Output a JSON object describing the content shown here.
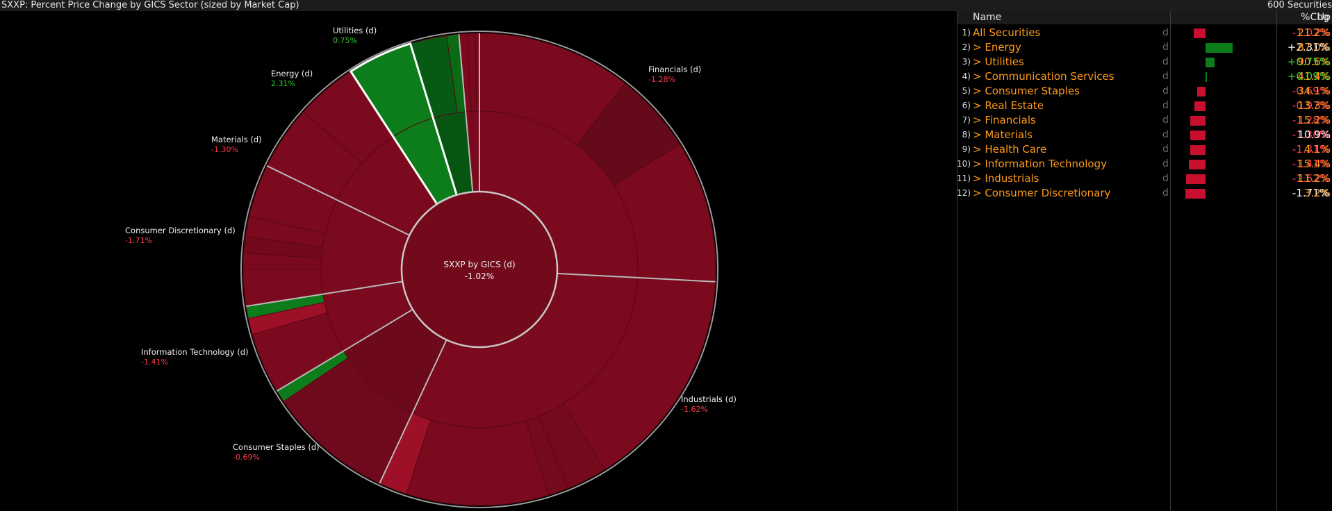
{
  "header": {
    "title": "SXXP: Percent Price Change by GICS Sector (sized by Market Cap)",
    "securities": "600 Securities"
  },
  "colors": {
    "negative": "#7b0a1f",
    "negative_strong": "#9e1028",
    "positive": "#0c7d1a",
    "positive_strong": "#139a24",
    "neg_text": "#ff3b48",
    "pos_text": "#36d02a"
  },
  "chart_data": {
    "type": "sunburst",
    "title": "SXXP: Percent Price Change by GICS Sector (sized by Market Cap)",
    "center": {
      "label": "SXXP by GICS (d)",
      "value": "-1.02%"
    },
    "sectors": [
      {
        "name": "Financials",
        "label": "Financials (d)",
        "chg": -1.28,
        "chg_text": "-1.28%"
      },
      {
        "name": "Industrials",
        "label": "Industrials (d)",
        "chg": -1.62,
        "chg_text": "-1.62%"
      },
      {
        "name": "Consumer Staples",
        "label": "Consumer Staples (d)",
        "chg": -0.69,
        "chg_text": "-0.69%"
      },
      {
        "name": "Information Technology",
        "label": "Information Technology (d)",
        "chg": -1.41,
        "chg_text": "-1.41%"
      },
      {
        "name": "Consumer Discretionary",
        "label": "Consumer Discretionary (d)",
        "chg": -1.71,
        "chg_text": "-1.71%"
      },
      {
        "name": "Materials",
        "label": "Materials (d)",
        "chg": -1.3,
        "chg_text": "-1.30%"
      },
      {
        "name": "Energy",
        "label": "Energy (d)",
        "chg": 2.31,
        "chg_text": "2.31%"
      },
      {
        "name": "Utilities",
        "label": "Utilities (d)",
        "chg": 0.75,
        "chg_text": "0.75%"
      }
    ]
  },
  "table": {
    "col_name": "Name",
    "col_chg": "%Chg",
    "col_up": "Up",
    "d_marker": "d",
    "rows": [
      {
        "num": "1)",
        "name": "All Securities",
        "chg": "-1.02%",
        "value": -1.02,
        "up": "21.2%",
        "chg_white": false,
        "up_white": false
      },
      {
        "num": "2)",
        "name": "> Energy",
        "chg": "+2.31%",
        "value": 2.31,
        "up": "87.0%",
        "chg_white": true,
        "up_white": false
      },
      {
        "num": "3)",
        "name": "> Utilities",
        "chg": "+0.75%",
        "value": 0.75,
        "up": "90.6%",
        "chg_white": false,
        "up_white": false
      },
      {
        "num": "4)",
        "name": "> Communication Services",
        "chg": "+0.09%",
        "value": 0.09,
        "up": "41.4%",
        "chg_white": false,
        "up_white": false
      },
      {
        "num": "5)",
        "name": "> Consumer Staples",
        "chg": "-0.69%",
        "value": -0.69,
        "up": "34.1%",
        "chg_white": false,
        "up_white": false
      },
      {
        "num": "6)",
        "name": "> Real Estate",
        "chg": "-0.97%",
        "value": -0.97,
        "up": "13.3%",
        "chg_white": false,
        "up_white": false
      },
      {
        "num": "7)",
        "name": "> Financials",
        "chg": "-1.28%",
        "value": -1.28,
        "up": "15.2%",
        "chg_white": false,
        "up_white": false
      },
      {
        "num": "8)",
        "name": "> Materials",
        "chg": "-1.30%",
        "value": -1.3,
        "up": "10.9%",
        "chg_white": false,
        "up_white": true
      },
      {
        "num": "9)",
        "name": "> Health Care",
        "chg": "-1.31%",
        "value": -1.31,
        "up": "4.1%",
        "chg_white": false,
        "up_white": false
      },
      {
        "num": "10)",
        "name": "> Information Technology",
        "chg": "-1.41%",
        "value": -1.41,
        "up": "15.4%",
        "chg_white": false,
        "up_white": false
      },
      {
        "num": "11)",
        "name": "> Industrials",
        "chg": "-1.62%",
        "value": -1.62,
        "up": "11.2%",
        "chg_white": false,
        "up_white": false
      },
      {
        "num": "12)",
        "name": "> Consumer Discretionary",
        "chg": "-1.71%",
        "value": -1.71,
        "up": "3.2%",
        "chg_white": true,
        "up_white": false
      }
    ]
  }
}
